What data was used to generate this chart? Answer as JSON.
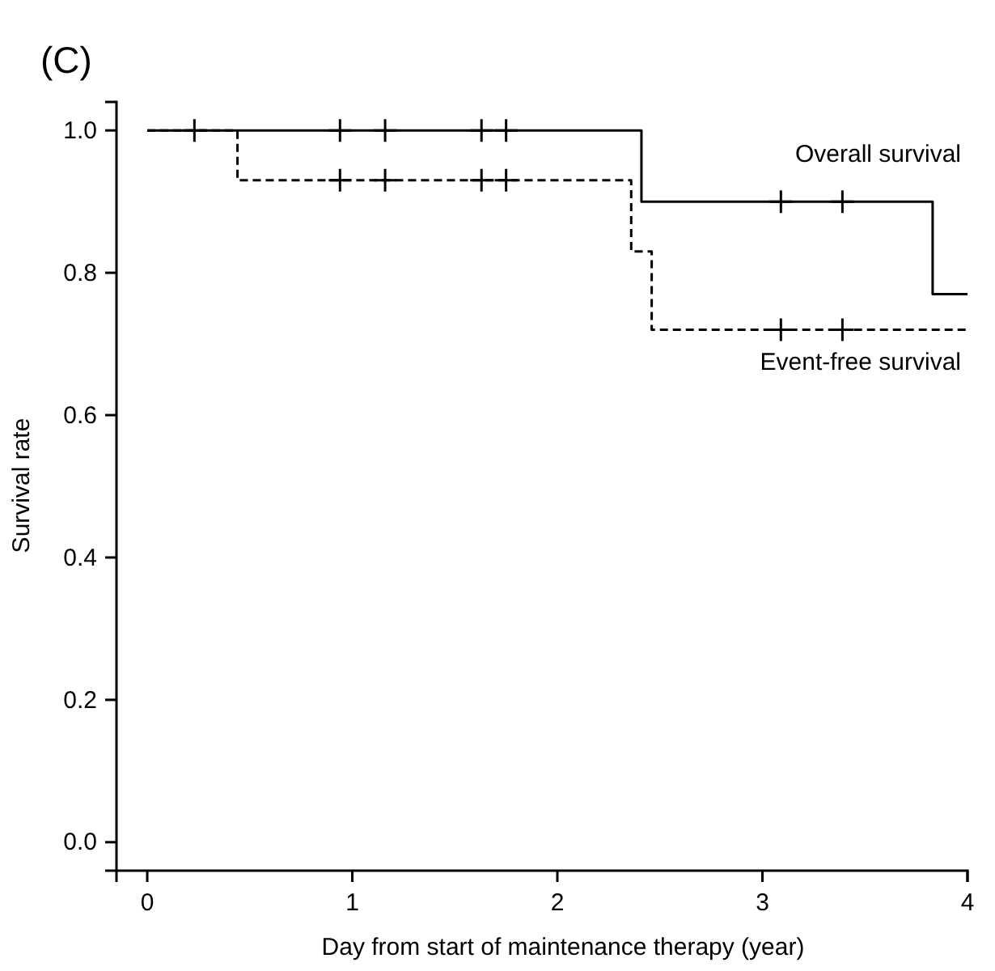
{
  "chart_data": {
    "type": "step",
    "title": "(C)",
    "xlabel": "Day from start of maintenance therapy (year)",
    "ylabel": "Survival rate",
    "xlim": [
      -0.15,
      4
    ],
    "xticks": [
      0,
      1,
      2,
      3,
      4
    ],
    "ylim": [
      -0.04,
      1.04
    ],
    "yticks": [
      {
        "value": 0,
        "label": "0.0"
      },
      {
        "value": 0.2,
        "label": "0.2"
      },
      {
        "value": 0.4,
        "label": "0.4"
      },
      {
        "value": 0.6,
        "label": "0.6"
      },
      {
        "value": 0.8,
        "label": "0.8"
      },
      {
        "value": 1,
        "label": "1.0"
      }
    ],
    "grid": false,
    "series": [
      {
        "name": "Overall survival",
        "color": "#000000",
        "line_style": "solid",
        "x": [
          0,
          2.41,
          3.83,
          4
        ],
        "values": [
          1,
          0.9,
          0.77,
          0.77
        ]
      },
      {
        "name": "Event-free survival",
        "color": "#000000",
        "line_style": "dashed",
        "x": [
          0,
          0.44,
          2.36,
          2.46,
          4
        ],
        "values": [
          1,
          0.93,
          0.83,
          0.72,
          0.72
        ]
      },
      {
        "type": "scatter",
        "color": "#000000",
        "marker": "cross",
        "x": [
          0.23,
          0.94,
          1.16,
          1.63,
          1.75,
          3.09,
          3.39
        ],
        "values": [
          1,
          1,
          1,
          1,
          1,
          0.9,
          0.9
        ]
      },
      {
        "type": "scatter",
        "color": "#000000",
        "marker": "cross",
        "x": [
          0.94,
          1.16,
          1.63,
          1.75,
          3.09,
          3.39
        ],
        "values": [
          0.93,
          0.93,
          0.93,
          0.93,
          0.72,
          0.72
        ]
      }
    ]
  }
}
